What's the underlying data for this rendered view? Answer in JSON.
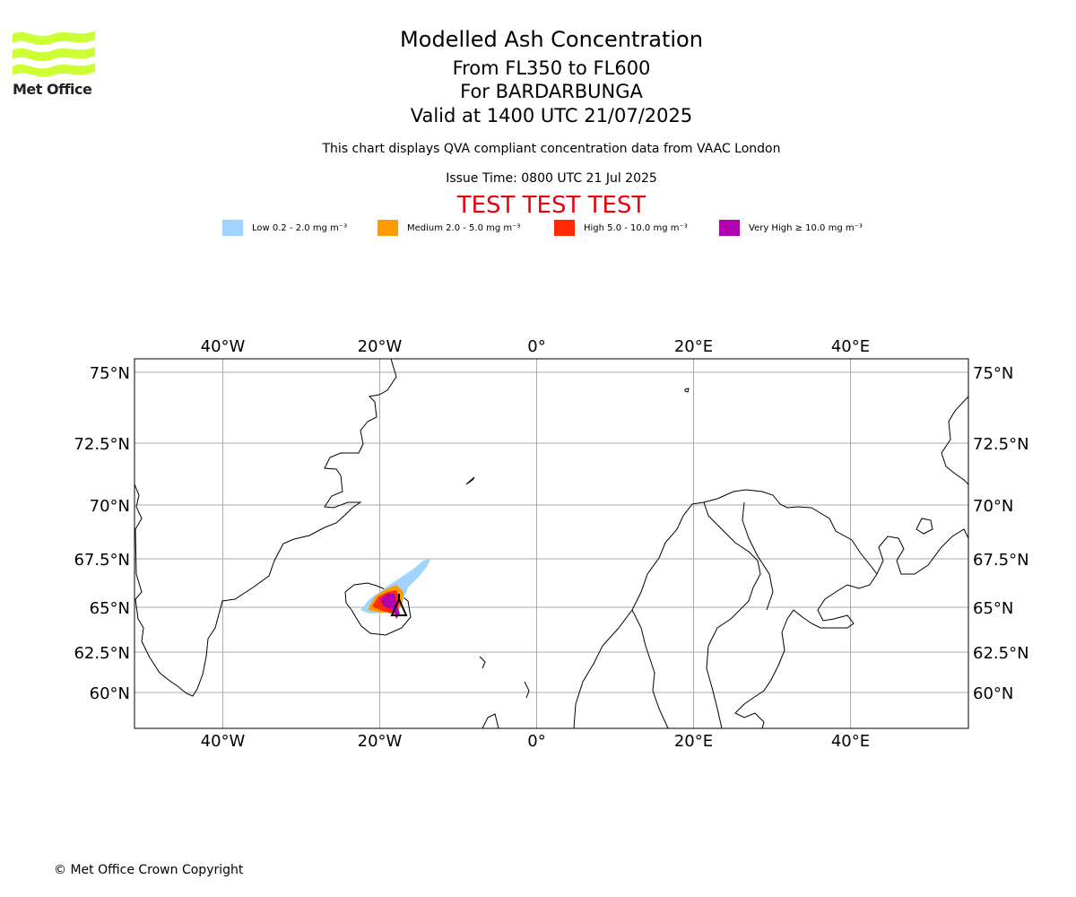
{
  "logo": {
    "text": "Met Office",
    "color": "#ccff33"
  },
  "title": {
    "line1": "Modelled Ash Concentration",
    "line2": "From FL350 to FL600",
    "line3": "For BARDARBUNGA",
    "line4": "Valid at 1400 UTC 21/07/2025"
  },
  "subtitle": "This chart displays QVA compliant concentration data from VAAC London",
  "issue_time": "Issue Time: 0800 UTC 21 Jul 2025",
  "test_banner": "TEST TEST TEST",
  "legend": [
    {
      "label": "Low 0.2 - 2.0 mg m⁻³",
      "color": "#a0d4ff"
    },
    {
      "label": "Medium 2.0 - 5.0 mg m⁻³",
      "color": "#ff9b00"
    },
    {
      "label": "High 5.0 - 10.0 mg m⁻³",
      "color": "#ff2a00"
    },
    {
      "label": "Very High ≥ 10.0 mg m⁻³",
      "color": "#b000b0"
    }
  ],
  "map": {
    "lon_labels": [
      "40°W",
      "20°W",
      "0°",
      "20°E",
      "40°E"
    ],
    "lon_values": [
      -40,
      -20,
      0,
      20,
      40
    ],
    "lat_labels": [
      "75°N",
      "72.5°N",
      "70°N",
      "67.5°N",
      "65°N",
      "62.5°N",
      "60°N"
    ],
    "lat_values": [
      75,
      72.5,
      70,
      67.5,
      65,
      62.5,
      60
    ],
    "volcano_name": "BARDARBUNGA",
    "grid_color": "#aaaaaa"
  },
  "footer": "© Met Office Crown Copyright"
}
